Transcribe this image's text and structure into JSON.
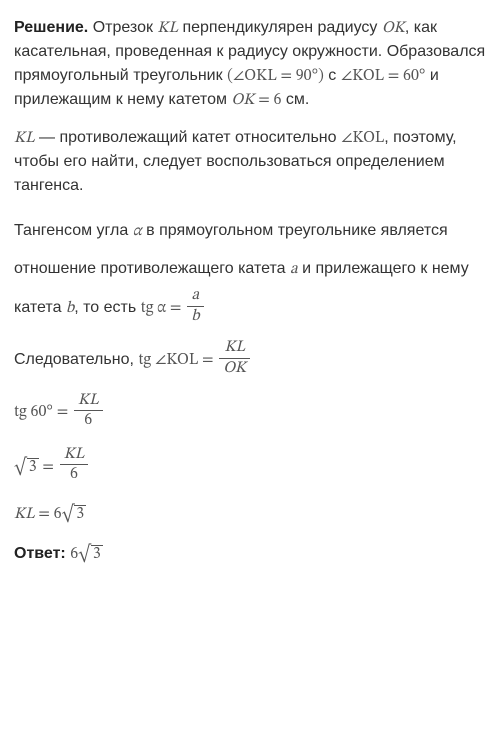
{
  "para1": {
    "lead": "Решение.",
    "t1": " Отрезок ",
    "m1": "KL",
    "t2": " перпендикулярен радиусу ",
    "m2": "OK",
    "t3": ", как касательная, проведенная к радиусу окружности. Образовался прямоугольный треугольник ",
    "m3a": "(∠OKL",
    "m3b": " = 90°)",
    "t4": " с ",
    "m4a": "∠KOL",
    "m4b": " = 60°",
    "t5": " и прилежащим к нему катетом ",
    "m5a": "OK",
    "m5b": " = 6",
    "t6": " см."
  },
  "para2": {
    "m1": "KL",
    "t1": " — противолежащий катет относительно ",
    "m2": "∠KOL",
    "t2": ", поэтому, чтобы его найти, следует воспользоваться определением тангенса."
  },
  "para3": {
    "t1": "Тангенсом угла ",
    "m1": "α",
    "t2": " в прямоугольном треугольнике является отношение противолежащего катета ",
    "m2": "a",
    "t3": " и прилежащего к нему катета ",
    "m3": "b",
    "t4": ", то есть ",
    "eq_lhs": "tg α = ",
    "eq_num": "a",
    "eq_den": "b"
  },
  "para4": {
    "t1": "Следовательно, ",
    "eq_lhs": "tg ∠KOL = ",
    "eq_num": "KL",
    "eq_den": "OK"
  },
  "eq1": {
    "lhs": "tg 60° = ",
    "num": "KL",
    "den": "6"
  },
  "eq2": {
    "rad": "3",
    "mid": " = ",
    "num": "KL",
    "den": "6"
  },
  "eq3": {
    "lhs": "KL",
    "mid": " = 6",
    "rad": "3"
  },
  "answer": {
    "label": "Ответ:",
    "sp": " ",
    "val_pre": "6",
    "rad": "3"
  }
}
